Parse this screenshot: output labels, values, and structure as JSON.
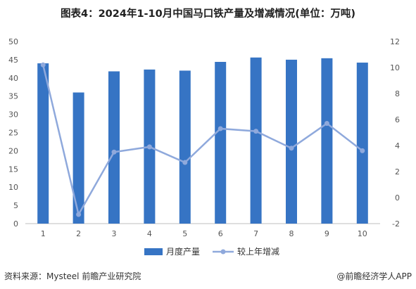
{
  "header": {
    "title": "图表4：2024年1-10月中国马口铁产量及增减情况(单位：万吨)"
  },
  "footer": {
    "source": "资料来源：Mysteel 前瞻产业研究院",
    "brand": "@前瞻经济学人APP"
  },
  "chart_data": {
    "type": "bar",
    "title": "图表4：2024年1-10月中国马口铁产量及增减情况(单位：万吨)",
    "categories": [
      "1",
      "2",
      "3",
      "4",
      "5",
      "6",
      "7",
      "8",
      "9",
      "10"
    ],
    "series": [
      {
        "name": "月度产量",
        "type": "bar",
        "axis": "left",
        "color": "#3674c4",
        "values": [
          44.0,
          36.0,
          41.8,
          42.3,
          42.0,
          44.4,
          45.6,
          45.0,
          45.4,
          44.2
        ]
      },
      {
        "name": "较上年增减",
        "type": "line",
        "axis": "right",
        "color": "#8fa9dc",
        "values": [
          10.2,
          -1.3,
          3.5,
          3.9,
          2.7,
          5.3,
          5.1,
          3.8,
          5.7,
          3.6
        ]
      }
    ],
    "y_left": {
      "min": 0,
      "max": 50,
      "ticks": [
        0,
        5,
        10,
        15,
        20,
        25,
        30,
        35,
        40,
        45,
        50
      ]
    },
    "y_right": {
      "min": -2,
      "max": 12,
      "ticks": [
        -2,
        0,
        2,
        4,
        6,
        8,
        10,
        12
      ]
    },
    "grid": false,
    "legend": "bottom-center"
  }
}
